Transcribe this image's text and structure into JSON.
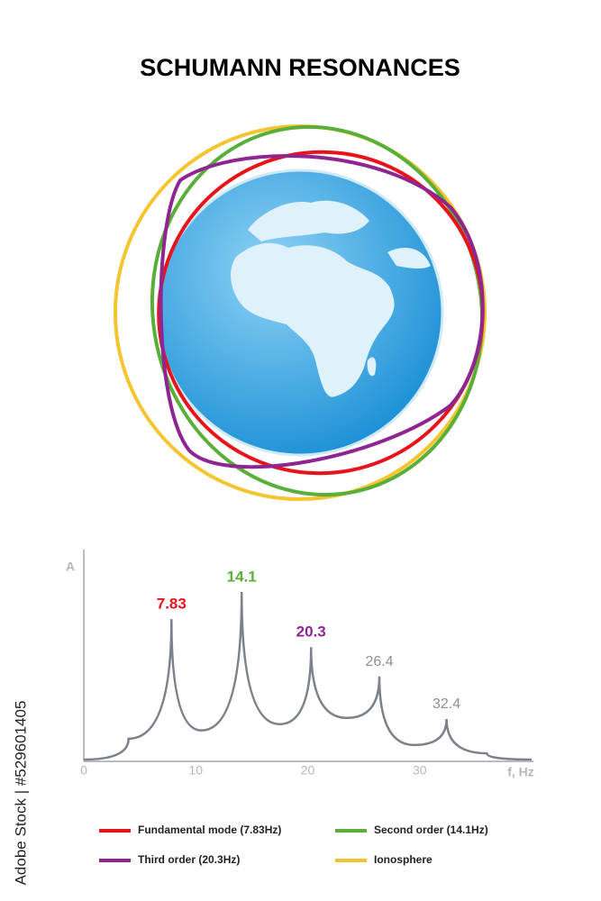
{
  "title": "SCHUMANN RESONANCES",
  "watermark": "Adobe Stock | #529601405",
  "legend": [
    {
      "label": "Fundamental mode (7.83Hz)",
      "color": "#e8141b"
    },
    {
      "label": "Second order (14.1Hz)",
      "color": "#5aae3a"
    },
    {
      "label": "Third order (20.3Hz)",
      "color": "#8e2590"
    },
    {
      "label": "Ionosphere",
      "color": "#f5c531"
    }
  ],
  "chart_data": {
    "type": "line",
    "x": [
      0,
      4,
      7.83,
      10.5,
      14.1,
      17.5,
      20.3,
      23.5,
      26.4,
      29.5,
      32.4,
      36,
      40
    ],
    "values": [
      0,
      0.1,
      0.675,
      0.14,
      0.805,
      0.17,
      0.54,
      0.2,
      0.4,
      0.07,
      0.195,
      0.03,
      0
    ],
    "label_colors": [
      null,
      null,
      "#e8141b",
      null,
      "#5aae3a",
      null,
      "#8e2590",
      null,
      "#8a8f98",
      null,
      "#8a8f98",
      null,
      null
    ],
    "color": "#7b828c",
    "xlim": [
      0,
      40
    ],
    "ylim": [
      0,
      1
    ],
    "xticks": [
      0,
      10,
      20,
      30
    ],
    "xlabel": "f, Hz",
    "ylabel": "A"
  }
}
